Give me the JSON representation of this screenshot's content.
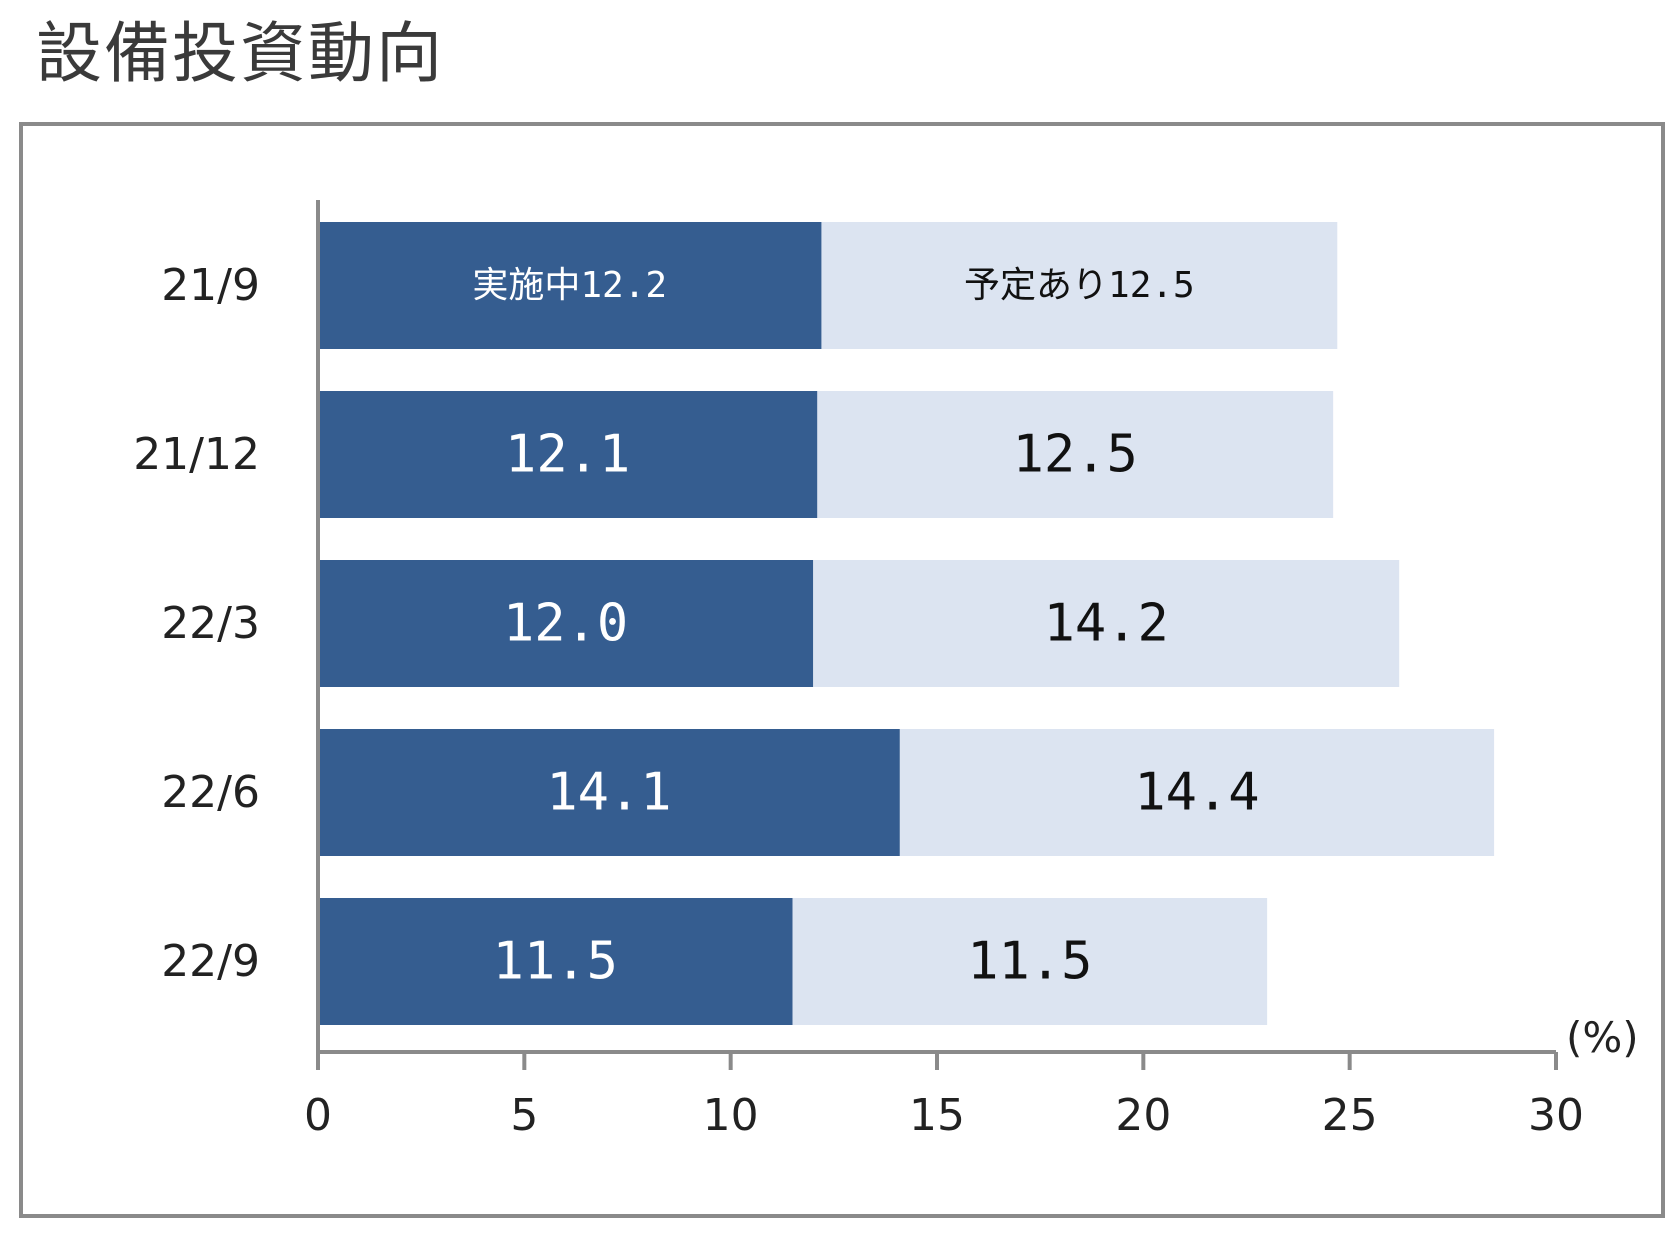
{
  "title": "設備投資動向",
  "chart_data": {
    "type": "bar",
    "orientation": "horizontal",
    "stacked": true,
    "categories": [
      "21/9",
      "21/12",
      "22/3",
      "22/6",
      "22/9"
    ],
    "series": [
      {
        "name": "実施中",
        "values": [
          12.2,
          12.1,
          12.0,
          14.1,
          11.5
        ],
        "labels": [
          "実施中12.2",
          "12.1",
          "12.0",
          "14.1",
          "11.5"
        ],
        "color": "#355d90",
        "label_color": "#ffffff"
      },
      {
        "name": "予定あり",
        "values": [
          12.5,
          12.5,
          14.2,
          14.4,
          11.5
        ],
        "labels": [
          "予定あり12.5",
          "12.5",
          "14.2",
          "14.4",
          "11.5"
        ],
        "color": "#dce4f1",
        "label_color": "#111111"
      }
    ],
    "xlim": [
      0,
      30
    ],
    "xticks": [
      "0",
      "5",
      "10",
      "15",
      "20",
      "25",
      "30"
    ],
    "unit": "(%)",
    "grid": false,
    "legend": "none (labels embedded in first bar)"
  }
}
